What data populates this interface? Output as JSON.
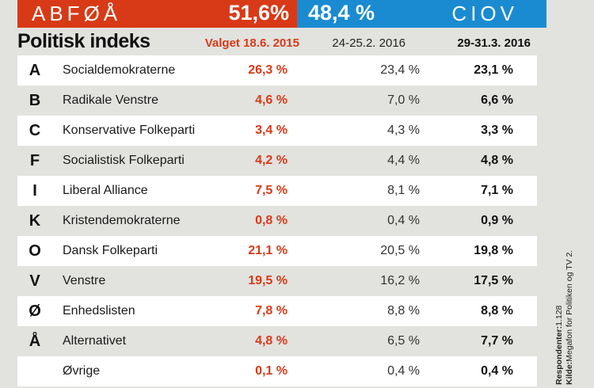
{
  "header": {
    "left_block": {
      "label": "ABFØÅ",
      "value": "51,6%",
      "color": "#d83a17"
    },
    "right_block": {
      "value": "48,4 %",
      "label": "CIOV",
      "color": "#1a8bd0"
    }
  },
  "title": "Politisk indeks",
  "columns": [
    "Valget 18.6. 2015",
    "24-25.2. 2016",
    "29-31.3. 2016"
  ],
  "source": {
    "respondents_label": "Respondenter:",
    "respondents_value": "1.128",
    "source_label": "Kilde:",
    "source_value": "Megafon for Politiken og TV 2."
  },
  "chart_data": {
    "type": "table",
    "title": "Politisk indeks",
    "blocs": [
      {
        "name": "ABFØÅ",
        "value": 51.6
      },
      {
        "name": "CIOV",
        "value": 48.4
      }
    ],
    "columns": [
      "Valget 18.6. 2015",
      "24-25.2. 2016",
      "29-31.3. 2016"
    ],
    "rows": [
      {
        "letter": "A",
        "party": "Socialdemokraterne",
        "v2015": "26,3 %",
        "feb2016": "23,4 %",
        "mar2016": "23,1 %"
      },
      {
        "letter": "B",
        "party": "Radikale Venstre",
        "v2015": "4,6 %",
        "feb2016": "7,0 %",
        "mar2016": "6,6 %"
      },
      {
        "letter": "C",
        "party": "Konservative Folkeparti",
        "v2015": "3,4 %",
        "feb2016": "4,3 %",
        "mar2016": "3,3 %"
      },
      {
        "letter": "F",
        "party": "Socialistisk Folkeparti",
        "v2015": "4,2 %",
        "feb2016": "4,4 %",
        "mar2016": "4,8 %"
      },
      {
        "letter": "I",
        "party": "Liberal Alliance",
        "v2015": "7,5 %",
        "feb2016": "8,1 %",
        "mar2016": "7,1 %"
      },
      {
        "letter": "K",
        "party": "Kristendemokraterne",
        "v2015": "0,8 %",
        "feb2016": "0,4 %",
        "mar2016": "0,9 %"
      },
      {
        "letter": "O",
        "party": "Dansk Folkeparti",
        "v2015": "21,1 %",
        "feb2016": "20,5 %",
        "mar2016": "19,8 %"
      },
      {
        "letter": "V",
        "party": "Venstre",
        "v2015": "19,5 %",
        "feb2016": "16,2 %",
        "mar2016": "17,5 %"
      },
      {
        "letter": "Ø",
        "party": "Enhedslisten",
        "v2015": "7,8 %",
        "feb2016": "8,8 %",
        "mar2016": "8,8 %"
      },
      {
        "letter": "Å",
        "party": "Alternativet",
        "v2015": "4,8 %",
        "feb2016": "6,5 %",
        "mar2016": "7,7 %"
      },
      {
        "letter": "",
        "party": "Øvrige",
        "v2015": "0,1 %",
        "feb2016": "0,4 %",
        "mar2016": "0,4 %"
      }
    ]
  }
}
